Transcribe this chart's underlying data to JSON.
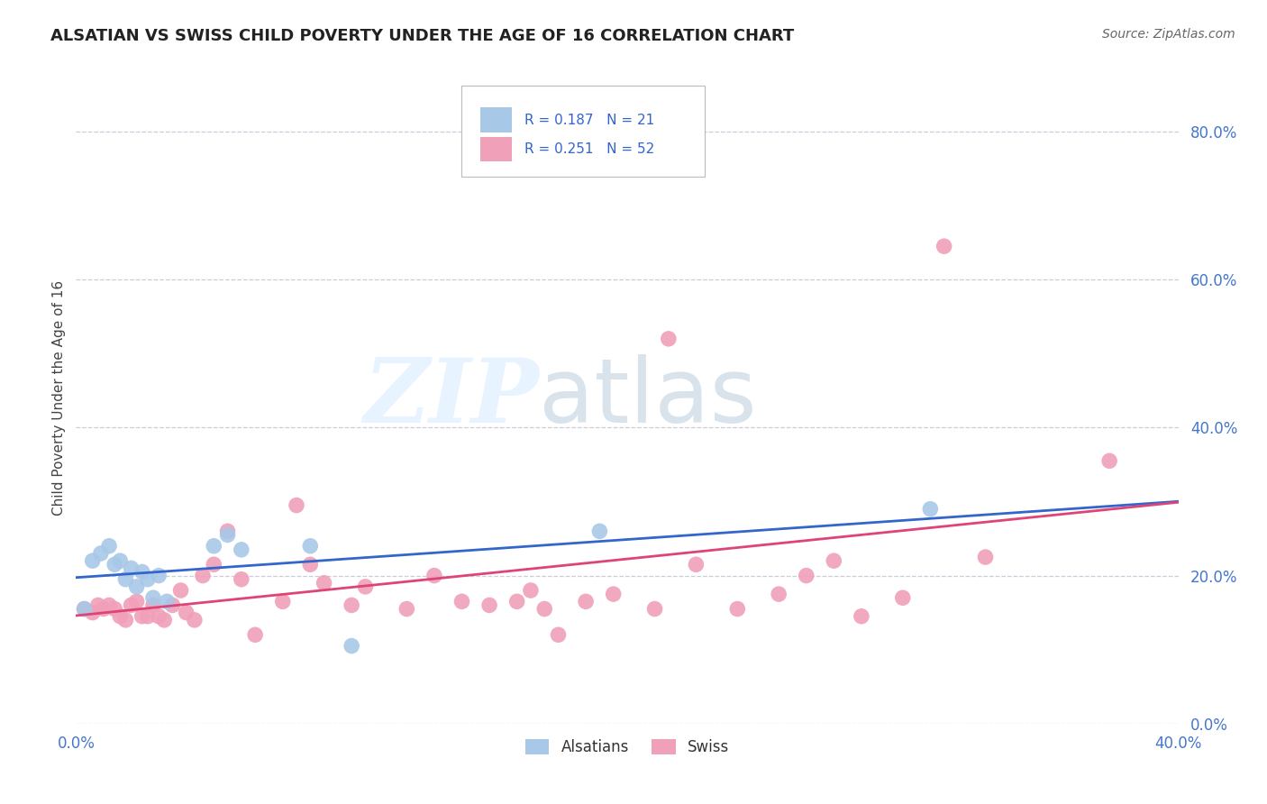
{
  "title": "ALSATIAN VS SWISS CHILD POVERTY UNDER THE AGE OF 16 CORRELATION CHART",
  "source": "Source: ZipAtlas.com",
  "ylabel": "Child Poverty Under the Age of 16",
  "xlim": [
    0.0,
    0.4
  ],
  "ylim": [
    0.0,
    0.88
  ],
  "ytick_positions": [
    0.0,
    0.2,
    0.4,
    0.6,
    0.8
  ],
  "ytick_labels": [
    "0.0%",
    "20.0%",
    "40.0%",
    "60.0%",
    "80.0%"
  ],
  "xtick_positions": [
    0.0,
    0.1,
    0.2,
    0.3,
    0.4
  ],
  "xtick_labels": [
    "0.0%",
    "",
    "",
    "",
    "40.0%"
  ],
  "alsatian_R": 0.187,
  "alsatian_N": 21,
  "swiss_R": 0.251,
  "swiss_N": 52,
  "alsatian_color": "#a8c8e8",
  "swiss_color": "#f0a0b8",
  "alsatian_line_color": "#3366cc",
  "swiss_line_color": "#dd4477",
  "background_color": "#ffffff",
  "grid_color": "#ccccdd",
  "tick_color": "#4477cc",
  "alsatian_x": [
    0.003,
    0.006,
    0.009,
    0.012,
    0.014,
    0.016,
    0.018,
    0.02,
    0.022,
    0.024,
    0.026,
    0.028,
    0.03,
    0.033,
    0.05,
    0.055,
    0.06,
    0.085,
    0.1,
    0.19,
    0.31
  ],
  "alsatian_y": [
    0.155,
    0.22,
    0.23,
    0.24,
    0.215,
    0.22,
    0.195,
    0.21,
    0.185,
    0.205,
    0.195,
    0.17,
    0.2,
    0.165,
    0.24,
    0.255,
    0.235,
    0.24,
    0.105,
    0.26,
    0.29
  ],
  "swiss_x": [
    0.003,
    0.006,
    0.008,
    0.01,
    0.012,
    0.014,
    0.016,
    0.018,
    0.02,
    0.022,
    0.024,
    0.026,
    0.028,
    0.03,
    0.032,
    0.035,
    0.038,
    0.04,
    0.043,
    0.046,
    0.05,
    0.055,
    0.06,
    0.065,
    0.075,
    0.08,
    0.085,
    0.09,
    0.1,
    0.105,
    0.12,
    0.13,
    0.14,
    0.15,
    0.16,
    0.165,
    0.17,
    0.175,
    0.185,
    0.195,
    0.21,
    0.215,
    0.225,
    0.24,
    0.255,
    0.265,
    0.275,
    0.285,
    0.3,
    0.315,
    0.33,
    0.375
  ],
  "swiss_y": [
    0.155,
    0.15,
    0.16,
    0.155,
    0.16,
    0.155,
    0.145,
    0.14,
    0.16,
    0.165,
    0.145,
    0.145,
    0.16,
    0.145,
    0.14,
    0.16,
    0.18,
    0.15,
    0.14,
    0.2,
    0.215,
    0.26,
    0.195,
    0.12,
    0.165,
    0.295,
    0.215,
    0.19,
    0.16,
    0.185,
    0.155,
    0.2,
    0.165,
    0.16,
    0.165,
    0.18,
    0.155,
    0.12,
    0.165,
    0.175,
    0.155,
    0.52,
    0.215,
    0.155,
    0.175,
    0.2,
    0.22,
    0.145,
    0.17,
    0.645,
    0.225,
    0.355
  ]
}
